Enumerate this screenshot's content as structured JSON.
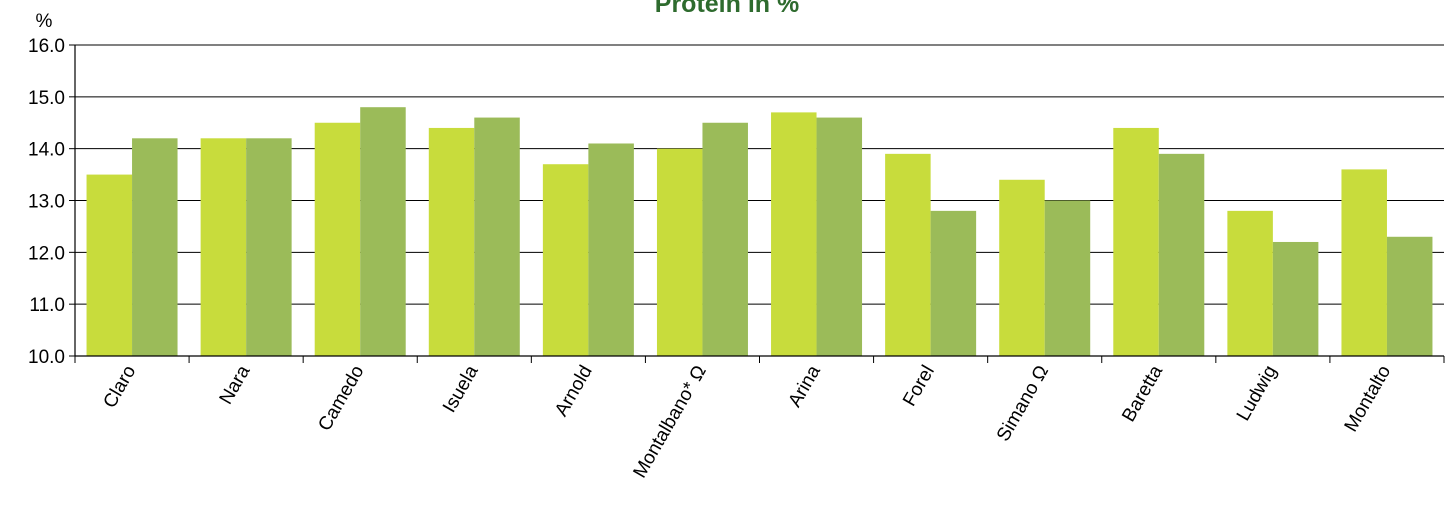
{
  "chart_data": {
    "type": "bar",
    "title": "Protein in %",
    "ylabel": "%",
    "xlabel": "",
    "ylim": [
      10.0,
      16.0
    ],
    "yticks": [
      "10.0",
      "11.0",
      "12.0",
      "13.0",
      "14.0",
      "15.0",
      "16.0"
    ],
    "grid": true,
    "categories": [
      "Claro",
      "Nara",
      "Camedo",
      "Isuela",
      "Arnold",
      "Montalbano* Ω",
      "Arina",
      "Forel",
      "Simano Ω",
      "Baretta",
      "Ludwig",
      "Montalto"
    ],
    "series": [
      {
        "color": "#c8dc3c",
        "values": [
          13.5,
          14.2,
          14.5,
          14.4,
          13.7,
          14.0,
          14.7,
          13.9,
          13.4,
          14.4,
          12.8,
          13.6
        ]
      },
      {
        "color": "#9bbb59",
        "values": [
          14.2,
          14.2,
          14.8,
          14.6,
          14.1,
          14.5,
          14.6,
          12.8,
          13.0,
          13.9,
          12.2,
          12.3
        ]
      }
    ]
  }
}
